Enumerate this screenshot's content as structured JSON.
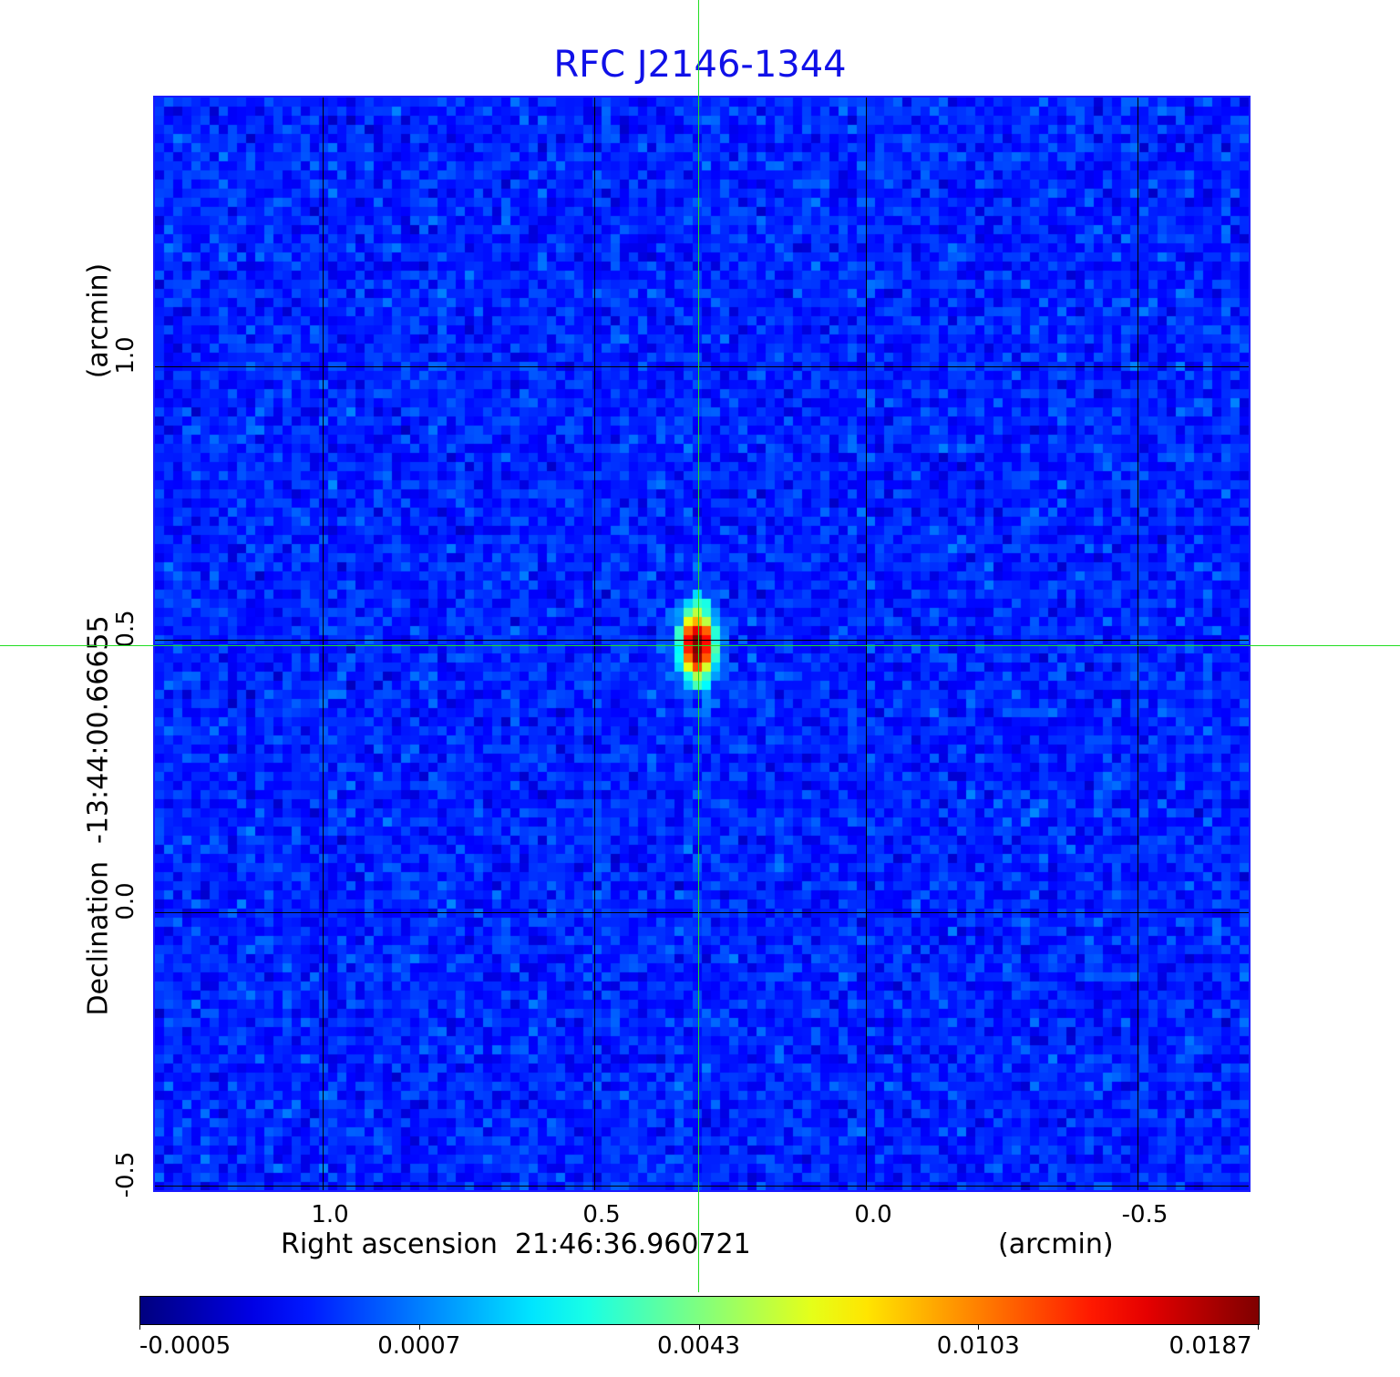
{
  "chart_data": {
    "type": "heatmap",
    "title": "RFC J2146-1344",
    "xlabel": "Right ascension  21:46:36.960721",
    "xunit": "(arcmin)",
    "ylabel": "Declination  -13:44:00.66655",
    "yunit": "(arcmin)",
    "xlim": [
      1.31,
      -0.7
    ],
    "ylim": [
      -0.5,
      1.5
    ],
    "x_ticks": [
      "1.0",
      "0.5",
      "0.0",
      "-0.5"
    ],
    "x_tick_values": [
      1.0,
      0.5,
      0.0,
      -0.5
    ],
    "y_ticks": [
      "1.0",
      "0.5",
      "0.0",
      "-0.5"
    ],
    "y_tick_values": [
      1.0,
      0.5,
      0.0,
      -0.5
    ],
    "grid": true,
    "colormap": "jet",
    "colorbar": {
      "ticks": [
        "-0.0005",
        "0.0007",
        "0.0043",
        "0.0103",
        "0.0187"
      ],
      "placement": "bottom"
    },
    "source_peak": {
      "x": 0.31,
      "y": 0.49,
      "value": 0.0187
    },
    "crosshair": {
      "x": 0.31,
      "y": 0.49,
      "color": "#22dd22"
    },
    "title_color": "#1010e8"
  }
}
